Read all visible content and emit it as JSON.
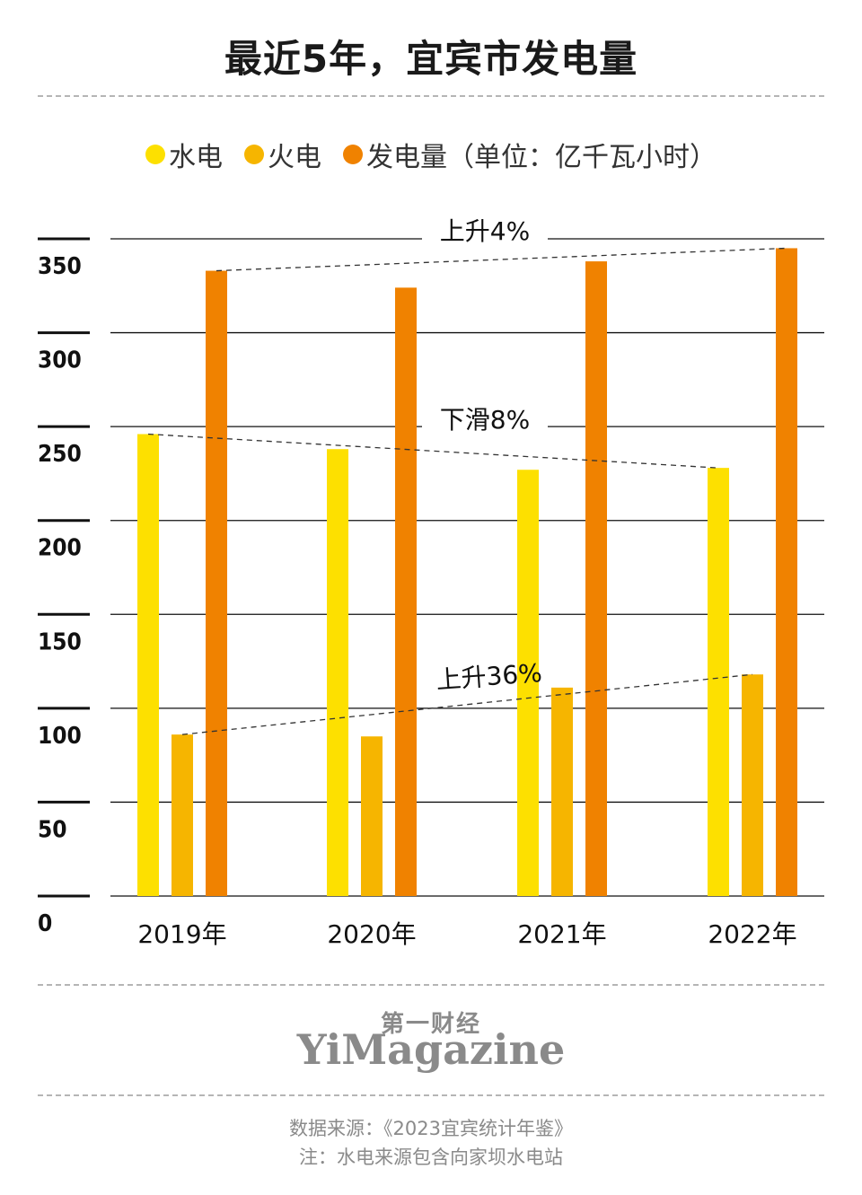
{
  "chart_data": {
    "type": "bar",
    "title": "最近5年，宜宾市发电量",
    "categories": [
      "2019年",
      "2020年",
      "2021年",
      "2022年"
    ],
    "series": [
      {
        "name": "水电",
        "color": "#FDE000",
        "values": [
          246,
          238,
          227,
          228
        ]
      },
      {
        "name": "火电",
        "color": "#F6B500",
        "values": [
          86,
          85,
          111,
          118
        ]
      },
      {
        "name": "发电量",
        "color": "#F08200",
        "values": [
          333,
          324,
          338,
          345
        ]
      }
    ],
    "legend_unit": "（单位：亿千瓦小时）",
    "y_ticks": [
      0,
      50,
      100,
      150,
      200,
      250,
      300,
      350
    ],
    "ylim": [
      0,
      350
    ],
    "ylabel": "",
    "xlabel": "",
    "annotations": [
      {
        "text": "上升4%",
        "series": "发电量"
      },
      {
        "text": "下滑8%",
        "series": "水电"
      },
      {
        "text": "上升36%",
        "series": "火电"
      }
    ],
    "grid": true,
    "legend_position": "top"
  },
  "brand": {
    "cn": "第一财经",
    "en": "YiMagazine"
  },
  "footer": {
    "source": "数据来源：《2023宜宾统计年鉴》",
    "note": "注：水电来源包含向家坝水电站"
  }
}
